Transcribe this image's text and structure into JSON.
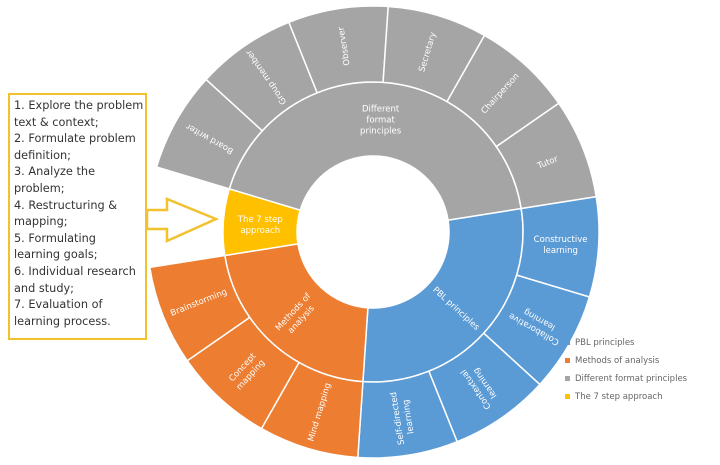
{
  "chart_data": {
    "type": "sunburst",
    "colors": {
      "PBL principles": "#5B9BD5",
      "Methods of analysis": "#ED7D31",
      "Different format principles": "#A5A5A5",
      "The 7 step approach": "#FFC000"
    },
    "categories": [
      {
        "name": "PBL principles",
        "label": "PBL principles",
        "children": [
          "Constructive learning",
          "Collaborative learning",
          "Contextual learning",
          "Self-directed learning"
        ]
      },
      {
        "name": "Methods of analysis",
        "label": "Methods of analysis",
        "children": [
          "Mind mapping",
          "Concept mapping",
          "Brainstorming"
        ]
      },
      {
        "name": "The 7 step approach",
        "label": "The 7 step approach",
        "children": []
      },
      {
        "name": "Different format principles",
        "label": "Different format principles",
        "children": [
          "Board writer",
          "Group member",
          "Observer",
          "Secretary",
          "Chairperson",
          "Tutor"
        ]
      }
    ],
    "legend": [
      "PBL principles",
      "Methods of analysis",
      "Different format principles",
      "The 7 step approach"
    ],
    "legend_position": "bottom-right"
  },
  "steps_box": {
    "lines": [
      "1. Explore the problem",
      "text & context;",
      "2. Formulate problem",
      "definition;",
      "3. Analyze the",
      "problem;",
      "4. Restructuring &",
      "mapping;",
      "5. Formulating",
      "learning goals;",
      "6. Individual research",
      "and study;",
      "7. Evaluation of",
      "learning process."
    ],
    "border_color": "#F2C12E"
  }
}
